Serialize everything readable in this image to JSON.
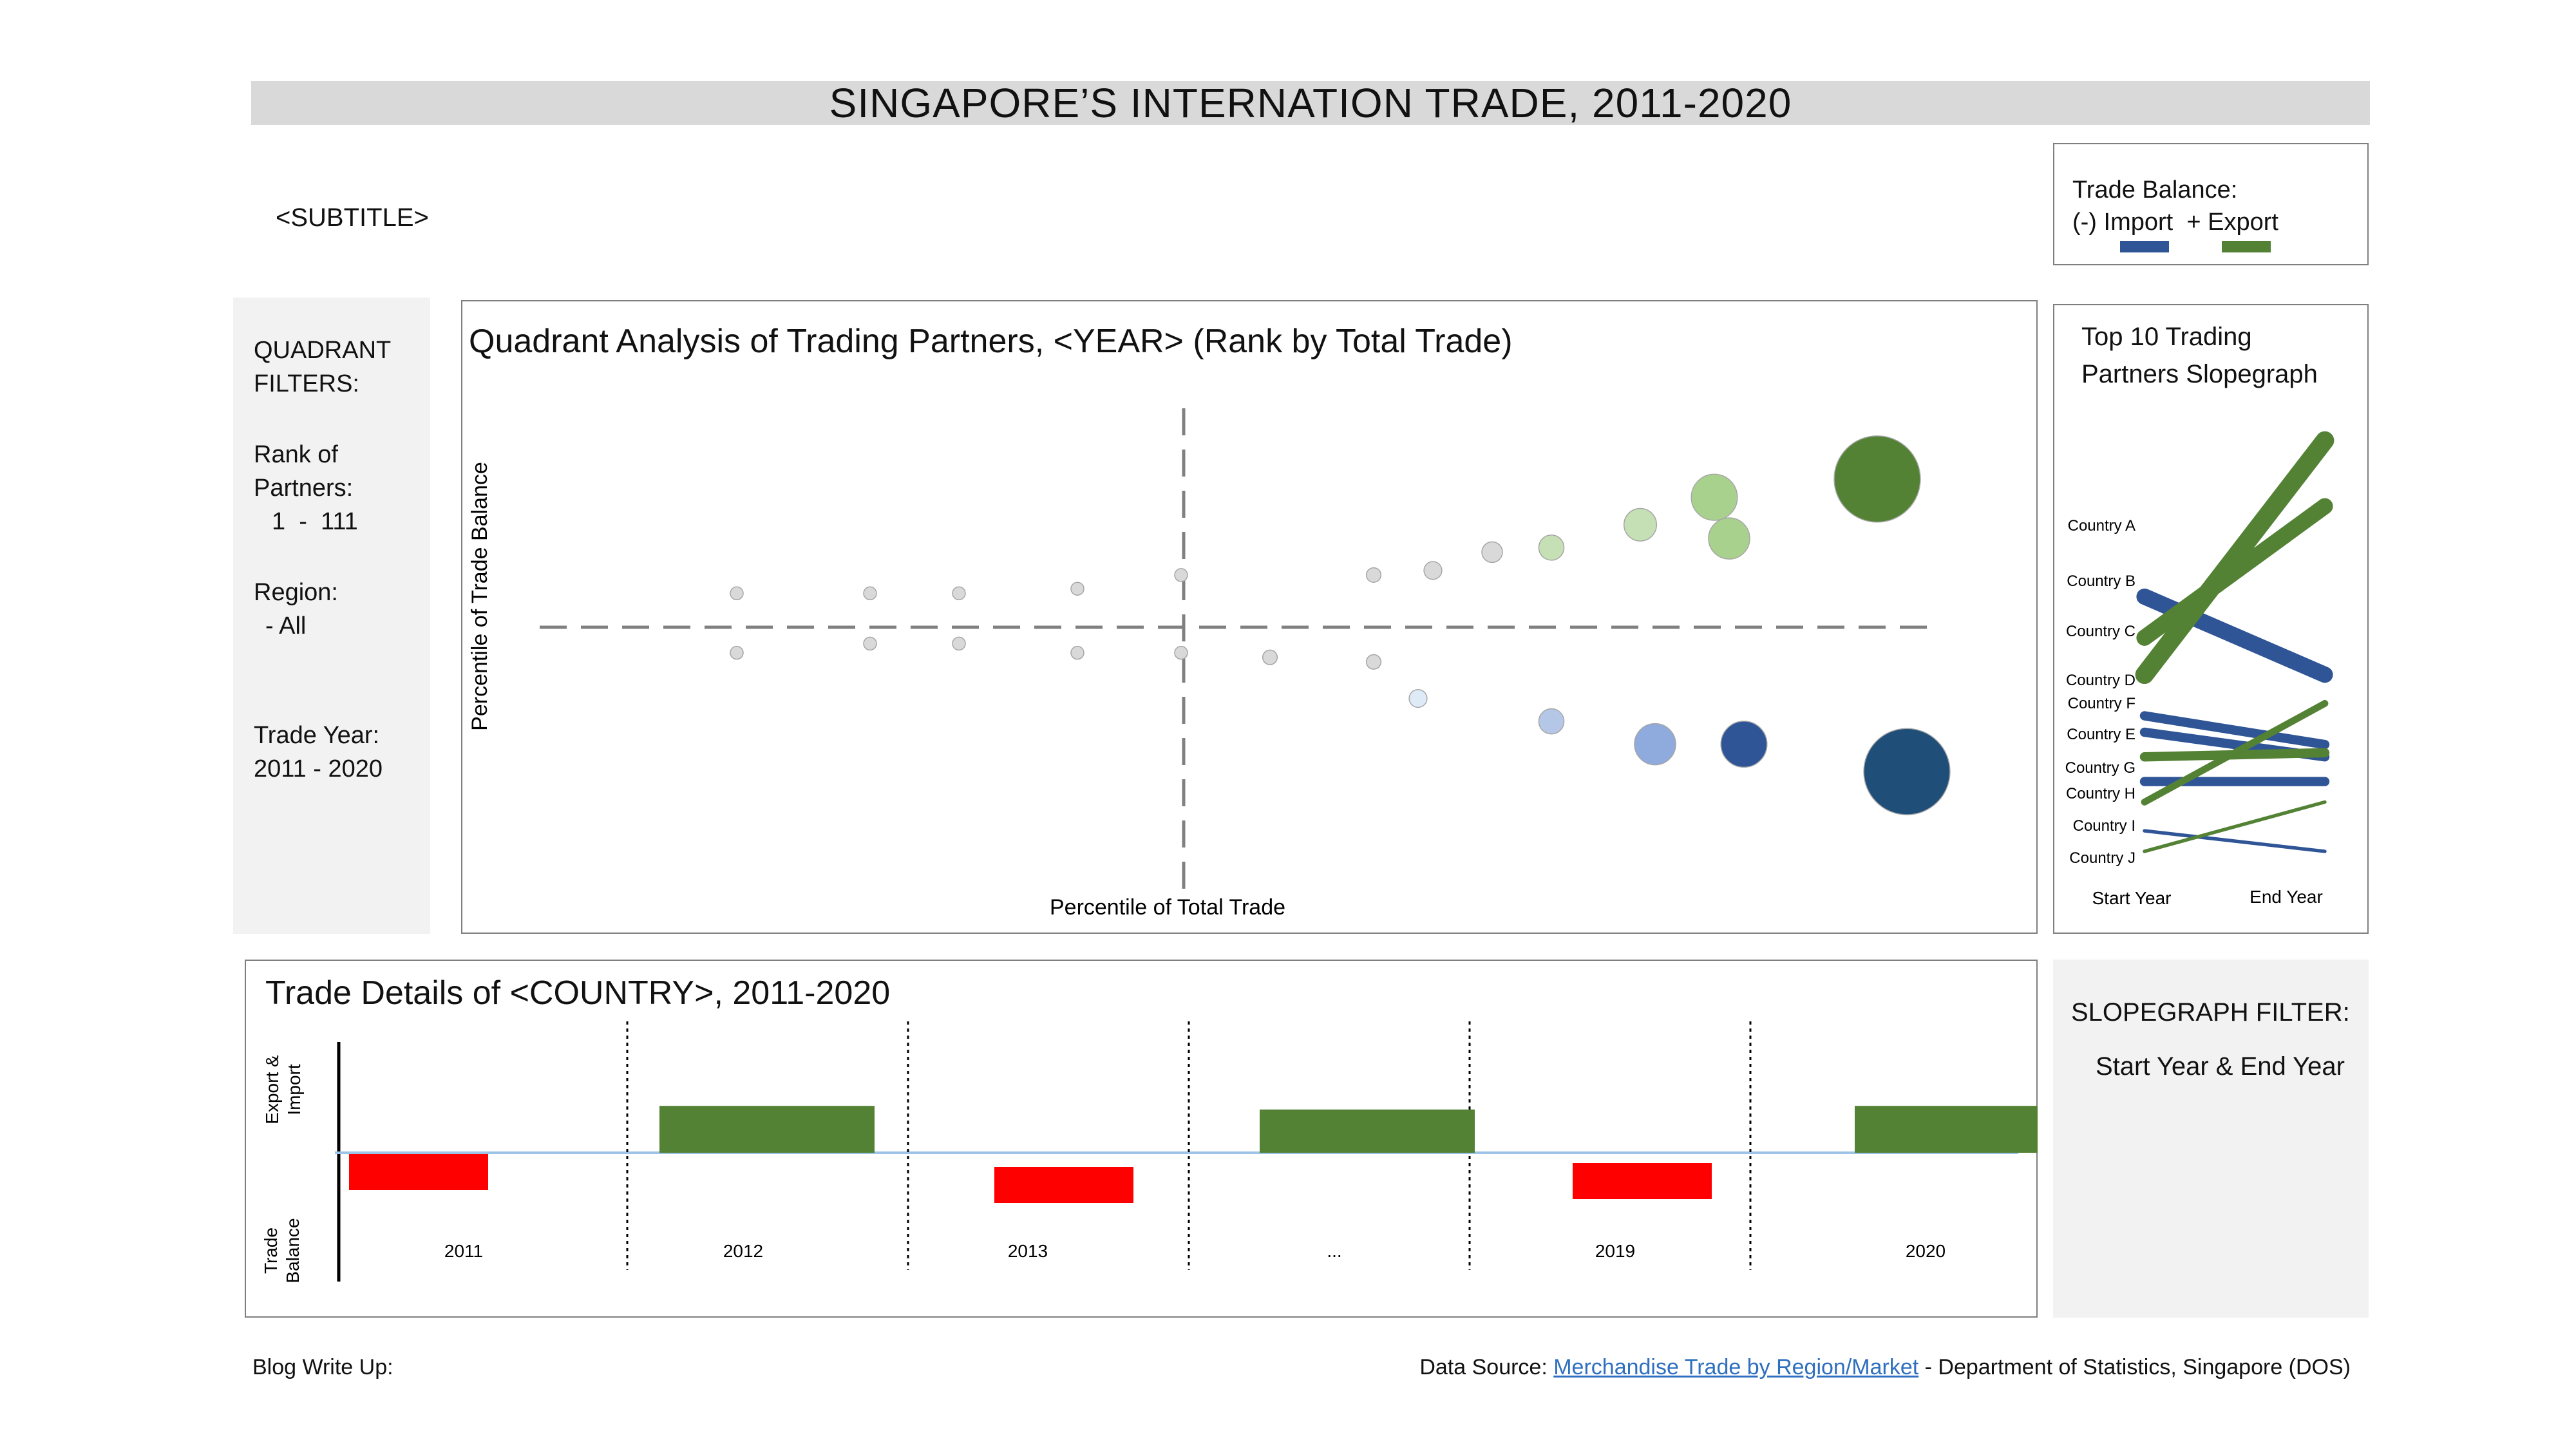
{
  "header": {
    "title": "SINGAPORE’S INTERNATION TRADE, 2011-2020",
    "subtitle": "<SUBTITLE>"
  },
  "legend": {
    "title": "Trade Balance:",
    "import_label": "(-) Import",
    "export_label": "+ Export",
    "import_color": "#2f5597",
    "export_color": "#548235"
  },
  "filters": {
    "heading": "QUADRANT FILTERS:",
    "rank_label": "Rank of Partners:",
    "rank_value": "1  -  111",
    "region_label": "Region:",
    "region_value": "- All",
    "year_label": "Trade Year:",
    "year_value": "2011 - 2020"
  },
  "chart_data": [
    {
      "type": "scatter",
      "title": "Quadrant Analysis of Trading Partners, <YEAR> (Rank by Total Trade)",
      "xlabel": "Percentile of Total Trade",
      "ylabel": "Percentile of Trade Balance",
      "grid": false,
      "note": "bubble chart; bubble size proportional to total trade; divided into quadrants by dashed median lines",
      "series": [
        {
          "points": [
            {
              "x": 0.16,
              "y": 0.57,
              "size": 1,
              "color": "#d9d9d9"
            },
            {
              "x": 0.16,
              "y": 0.44,
              "size": 1,
              "color": "#d9d9d9"
            },
            {
              "x": 0.25,
              "y": 0.57,
              "size": 1,
              "color": "#d9d9d9"
            },
            {
              "x": 0.25,
              "y": 0.46,
              "size": 1,
              "color": "#d9d9d9"
            },
            {
              "x": 0.31,
              "y": 0.57,
              "size": 1,
              "color": "#d9d9d9"
            },
            {
              "x": 0.31,
              "y": 0.46,
              "size": 1,
              "color": "#d9d9d9"
            },
            {
              "x": 0.39,
              "y": 0.58,
              "size": 1,
              "color": "#d9d9d9"
            },
            {
              "x": 0.39,
              "y": 0.44,
              "size": 1,
              "color": "#d9d9d9"
            },
            {
              "x": 0.46,
              "y": 0.61,
              "size": 1,
              "color": "#d9d9d9"
            },
            {
              "x": 0.46,
              "y": 0.44,
              "size": 1,
              "color": "#d9d9d9"
            },
            {
              "x": 0.52,
              "y": 0.43,
              "size": 2,
              "color": "#d9d9d9"
            },
            {
              "x": 0.59,
              "y": 0.61,
              "size": 2,
              "color": "#d9d9d9"
            },
            {
              "x": 0.59,
              "y": 0.42,
              "size": 2,
              "color": "#d9d9d9"
            },
            {
              "x": 0.63,
              "y": 0.62,
              "size": 3,
              "color": "#d9d9d9"
            },
            {
              "x": 0.62,
              "y": 0.34,
              "size": 3,
              "color": "#deebf7"
            },
            {
              "x": 0.67,
              "y": 0.66,
              "size": 4,
              "color": "#d9d9d9"
            },
            {
              "x": 0.71,
              "y": 0.67,
              "size": 6,
              "color": "#c5e0b4"
            },
            {
              "x": 0.71,
              "y": 0.29,
              "size": 6,
              "color": "#b4c7e7"
            },
            {
              "x": 0.77,
              "y": 0.72,
              "size": 10,
              "color": "#c5e0b4"
            },
            {
              "x": 0.78,
              "y": 0.24,
              "size": 16,
              "color": "#8faadc"
            },
            {
              "x": 0.82,
              "y": 0.78,
              "size": 20,
              "color": "#a9d18e"
            },
            {
              "x": 0.83,
              "y": 0.69,
              "size": 16,
              "color": "#a9d18e"
            },
            {
              "x": 0.84,
              "y": 0.24,
              "size": 20,
              "color": "#2f5597"
            },
            {
              "x": 0.93,
              "y": 0.82,
              "size": 70,
              "color": "#548235"
            },
            {
              "x": 0.95,
              "y": 0.18,
              "size": 70,
              "color": "#1f4e79"
            }
          ]
        }
      ]
    },
    {
      "type": "line",
      "title": "Top 10 Trading Partners Slopegraph",
      "categories": [
        "Start Year",
        "End Year"
      ],
      "note": "slopegraph; line thickness proportional to trade volume",
      "series": [
        {
          "name": "Country A",
          "values": [
            0.62,
            0.43
          ],
          "color": "#2f5597",
          "weight": 7
        },
        {
          "name": "Country B",
          "values": [
            0.52,
            0.84
          ],
          "color": "#548235",
          "weight": 7
        },
        {
          "name": "Country C",
          "values": [
            0.43,
            1.0
          ],
          "color": "#548235",
          "weight": 8
        },
        {
          "name": "Country D",
          "values": [
            0.33,
            0.26
          ],
          "color": "#2f5597",
          "weight": 4
        },
        {
          "name": "Country F",
          "values": [
            0.29,
            0.23
          ],
          "color": "#2f5597",
          "weight": 4
        },
        {
          "name": "Country E",
          "values": [
            0.23,
            0.24
          ],
          "color": "#548235",
          "weight": 4
        },
        {
          "name": "Country G",
          "values": [
            0.17,
            0.17
          ],
          "color": "#2f5597",
          "weight": 4
        },
        {
          "name": "Country H",
          "values": [
            0.12,
            0.36
          ],
          "color": "#548235",
          "weight": 3
        },
        {
          "name": "Country I",
          "values": [
            0.05,
            0.0
          ],
          "color": "#2f5597",
          "weight": 1.5
        },
        {
          "name": "Country J",
          "values": [
            0.0,
            0.12
          ],
          "color": "#548235",
          "weight": 1.5
        }
      ]
    },
    {
      "type": "bar",
      "title": "Trade Details of <COUNTRY>, 2011-2020",
      "ylabel": [
        "Export & Import",
        "Trade Balance"
      ],
      "categories": [
        "2011",
        "2012",
        "2013",
        "...",
        "2019",
        "2020"
      ],
      "note": "trade balance per year; positive = export surplus (green), negative = import deficit (red)",
      "values": [
        -1.0,
        1.3,
        -1.0,
        1.2,
        -1.0,
        1.3
      ],
      "colors": [
        "#ff0000",
        "#548235",
        "#ff0000",
        "#548235",
        "#ff0000",
        "#548235"
      ]
    }
  ],
  "slopegraph_filter": {
    "heading": "SLOPEGRAPH FILTER:",
    "value": "Start Year & End Year"
  },
  "footer": {
    "blog_label": "Blog Write Up:",
    "source_prefix": "Data Source: ",
    "source_link": "Merchandise Trade by Region/Market",
    "source_suffix": " - Department of Statistics, Singapore (DOS)"
  }
}
